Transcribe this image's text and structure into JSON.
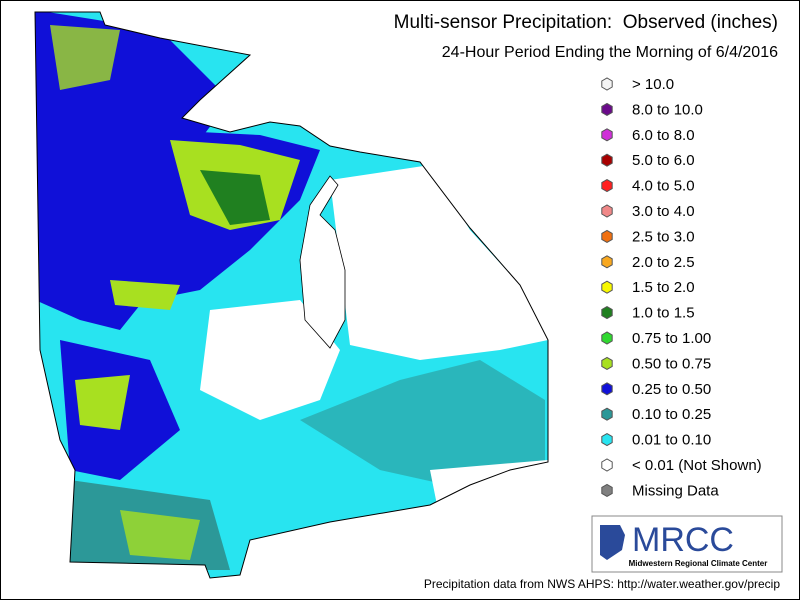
{
  "header": {
    "title": "Multi-sensor Precipitation:  Observed (inches)",
    "subtitle": "24-Hour Period Ending the Morning of 6/4/2016"
  },
  "legend": {
    "items": [
      {
        "label": "> 10.0",
        "color": "#f4f4f4"
      },
      {
        "label": "8.0 to 10.0",
        "color": "#6a0a8a"
      },
      {
        "label": "6.0 to 8.0",
        "color": "#d030d8"
      },
      {
        "label": "5.0 to 6.0",
        "color": "#a80000"
      },
      {
        "label": "4.0 to 5.0",
        "color": "#ff2020"
      },
      {
        "label": "3.0 to 4.0",
        "color": "#f08888"
      },
      {
        "label": "2.5 to 3.0",
        "color": "#f07010"
      },
      {
        "label": "2.0 to 2.5",
        "color": "#f8a820"
      },
      {
        "label": "1.5 to 2.0",
        "color": "#f8f800"
      },
      {
        "label": "1.0 to 1.5",
        "color": "#208020"
      },
      {
        "label": "0.75 to 1.00",
        "color": "#30d830"
      },
      {
        "label": "0.50 to 0.75",
        "color": "#a8e020"
      },
      {
        "label": "0.25 to 0.50",
        "color": "#1010d8"
      },
      {
        "label": "0.10 to 0.25",
        "color": "#2c9898"
      },
      {
        "label": "0.01 to 0.10",
        "color": "#28e4f0"
      },
      {
        "label": "< 0.01 (Not Shown)",
        "color": "#ffffff"
      },
      {
        "label": "Missing Data",
        "color": "#808080"
      }
    ]
  },
  "logo": {
    "name": "MRCC",
    "full_name": "Midwestern Regional Climate Center"
  },
  "footer": {
    "source": "Precipitation data from NWS AHPS: http://water.weather.gov/precip"
  }
}
